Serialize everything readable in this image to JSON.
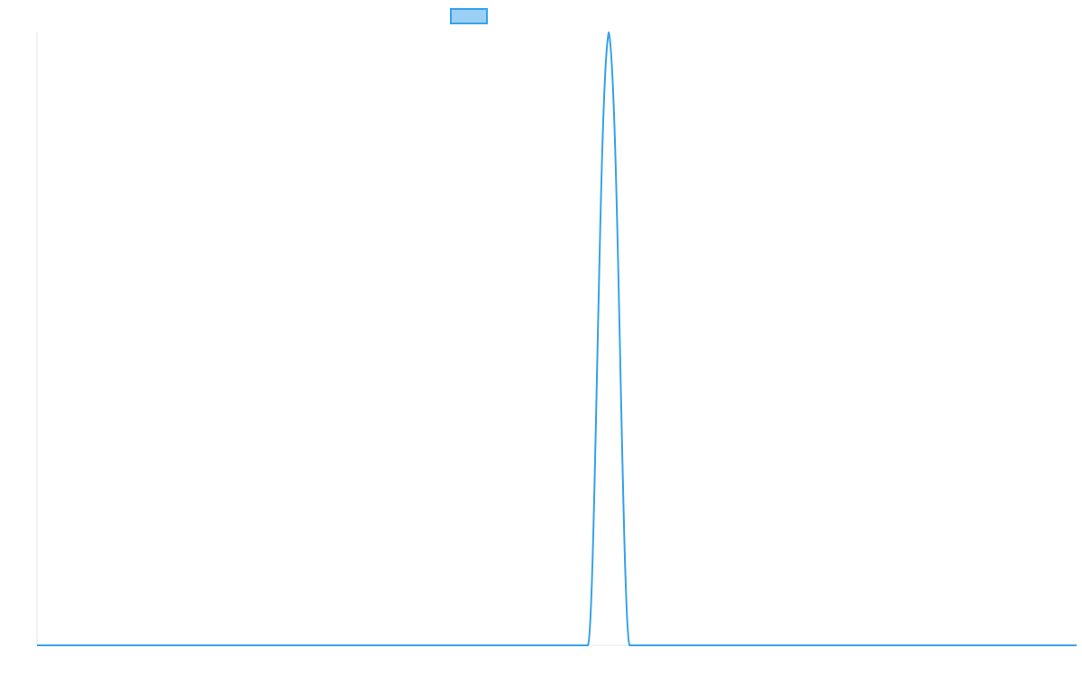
{
  "chart_data": {
    "type": "line",
    "title": "",
    "xlabel": "",
    "ylabel": "",
    "legend": {
      "placement": "top-center",
      "entries": [
        {
          "label": "",
          "color": "#36a2eb",
          "fill": "#9ad0f5"
        }
      ]
    },
    "grid": false,
    "xlim": [
      0,
      100
    ],
    "ylim": [
      0,
      1
    ],
    "series": [
      {
        "color": "#36a2eb",
        "points": [
          {
            "x": 0,
            "y": 0
          },
          {
            "x": 53.0,
            "y": 0
          },
          {
            "x": 55.0,
            "y": 1
          },
          {
            "x": 57.0,
            "y": 0
          },
          {
            "x": 100,
            "y": 0
          }
        ]
      }
    ]
  },
  "colors": {
    "line": "#36a2eb",
    "legend_fill": "#9ad0f5",
    "axis": "#e5e5e5"
  }
}
